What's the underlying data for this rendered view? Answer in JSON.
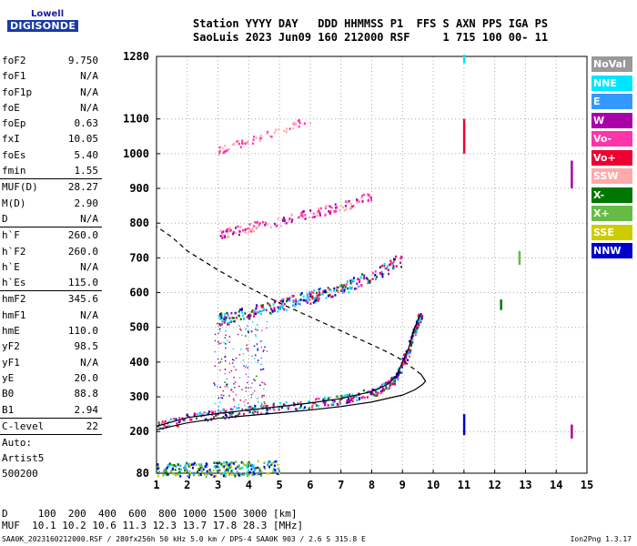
{
  "logo": {
    "line1": "Lowell",
    "line2": "DIGISONDE"
  },
  "header": {
    "line1": "Station YYYY DAY   DDD HHMMSS P1  FFS S AXN PPS IGA PS",
    "line2": "SaoLuis 2023 Jun09 160 212000 RSF     1 715 100 00- 11"
  },
  "params": [
    {
      "key": "foF2",
      "value": "9.750"
    },
    {
      "key": "foF1",
      "value": "N/A"
    },
    {
      "key": "foF1p",
      "value": "N/A"
    },
    {
      "key": "foE",
      "value": "N/A"
    },
    {
      "key": "foEp",
      "value": "0.63"
    },
    {
      "key": "fxI",
      "value": "10.05"
    },
    {
      "key": "foEs",
      "value": "5.40"
    },
    {
      "key": "fmin",
      "value": "1.55"
    },
    {
      "sep": true
    },
    {
      "key": "MUF(D)",
      "value": "28.27"
    },
    {
      "key": "M(D)",
      "value": "2.90"
    },
    {
      "key": "D",
      "value": "N/A"
    },
    {
      "sep": true
    },
    {
      "key": "h`F",
      "value": "260.0"
    },
    {
      "key": "h`F2",
      "value": "260.0"
    },
    {
      "key": "h`E",
      "value": "N/A"
    },
    {
      "key": "h`Es",
      "value": "115.0"
    },
    {
      "sep": true
    },
    {
      "key": "hmF2",
      "value": "345.6"
    },
    {
      "key": "hmF1",
      "value": "N/A"
    },
    {
      "key": "hmE",
      "value": "110.0"
    },
    {
      "key": "yF2",
      "value": "98.5"
    },
    {
      "key": "yF1",
      "value": "N/A"
    },
    {
      "key": "yE",
      "value": "20.0"
    },
    {
      "key": "B0",
      "value": "88.8"
    },
    {
      "key": "B1",
      "value": "2.94"
    },
    {
      "sep": true
    },
    {
      "key": "C-level",
      "value": "22"
    },
    {
      "sep": true
    }
  ],
  "auto": {
    "line1": "Auto:",
    "line2": "Artist5",
    "line3": "500200"
  },
  "bottom": {
    "line1": "D     100  200  400  600  800 1000 1500 3000 [km]",
    "line2": "MUF  10.1 10.2 10.6 11.3 12.3 13.7 17.8 28.3 [MHz]"
  },
  "footer": {
    "left": "SAA0K_2023160212000.RSF / 280fx256h 50 kHz 5.0 km / DPS-4 SAA0K 903 / 2.6 S 315.8 E",
    "right": "Ion2Png 1.3.17"
  },
  "legend": [
    {
      "label": "NoVal",
      "color": "#999999"
    },
    {
      "label": "NNE",
      "color": "#00e5ff"
    },
    {
      "label": "E",
      "color": "#3399ff"
    },
    {
      "label": "W",
      "color": "#aa00aa"
    },
    {
      "label": "Vo-",
      "color": "#ff33aa"
    },
    {
      "label": "Vo+",
      "color": "#ee0033"
    },
    {
      "label": "SSW",
      "color": "#ffaaaa"
    },
    {
      "label": "X-",
      "color": "#007700"
    },
    {
      "label": "X+",
      "color": "#66bb44"
    },
    {
      "label": "SSE",
      "color": "#cccc00"
    },
    {
      "label": "NNW",
      "color": "#0000cc"
    }
  ],
  "chart_data": {
    "type": "scatter",
    "xlim": [
      1,
      15
    ],
    "ylim": [
      80,
      1280
    ],
    "x_ticks": [
      1,
      2,
      3,
      4,
      5,
      6,
      7,
      8,
      9,
      10,
      11,
      12,
      13,
      14,
      15
    ],
    "y_ticks": [
      80,
      200,
      300,
      400,
      500,
      600,
      700,
      800,
      900,
      1000,
      1100,
      1280
    ],
    "grid": true,
    "profile": [
      [
        1,
        205
      ],
      [
        2,
        225
      ],
      [
        3,
        238
      ],
      [
        4,
        246
      ],
      [
        5,
        254
      ],
      [
        6,
        262
      ],
      [
        7,
        272
      ],
      [
        8,
        285
      ],
      [
        9,
        305
      ],
      [
        9.4,
        320
      ],
      [
        9.65,
        335
      ],
      [
        9.75,
        345
      ],
      [
        9.6,
        365
      ],
      [
        9.3,
        385
      ],
      [
        9.0,
        405
      ],
      [
        8.6,
        425
      ],
      [
        8.0,
        450
      ],
      [
        7.0,
        490
      ],
      [
        6.0,
        530
      ],
      [
        5.0,
        570
      ],
      [
        4.0,
        615
      ],
      [
        3.0,
        665
      ],
      [
        2.0,
        720
      ],
      [
        1.5,
        760
      ],
      [
        1.0,
        790
      ]
    ],
    "trace_main": [
      [
        1,
        215
      ],
      [
        2,
        240
      ],
      [
        3,
        252
      ],
      [
        4,
        262
      ],
      [
        5,
        272
      ],
      [
        6,
        282
      ],
      [
        7,
        295
      ],
      [
        8,
        315
      ],
      [
        8.5,
        335
      ],
      [
        8.8,
        360
      ],
      [
        9.0,
        400
      ],
      [
        9.2,
        440
      ],
      [
        9.4,
        500
      ],
      [
        9.6,
        540
      ]
    ],
    "trace_2hop": [
      [
        3,
        525
      ],
      [
        4,
        545
      ],
      [
        5,
        565
      ],
      [
        6,
        590
      ],
      [
        7,
        615
      ],
      [
        8,
        650
      ],
      [
        9,
        700
      ]
    ],
    "trace_3hop": [
      [
        3,
        770
      ],
      [
        4,
        790
      ],
      [
        5,
        805
      ],
      [
        6,
        830
      ],
      [
        7,
        850
      ],
      [
        8,
        880
      ]
    ],
    "trace_4hop": [
      [
        3,
        1010
      ],
      [
        4,
        1040
      ],
      [
        5,
        1070
      ],
      [
        6,
        1100
      ]
    ],
    "trace_low": [
      [
        1,
        90
      ],
      [
        2,
        92
      ],
      [
        3,
        94
      ],
      [
        4,
        96
      ],
      [
        5,
        98
      ]
    ]
  }
}
